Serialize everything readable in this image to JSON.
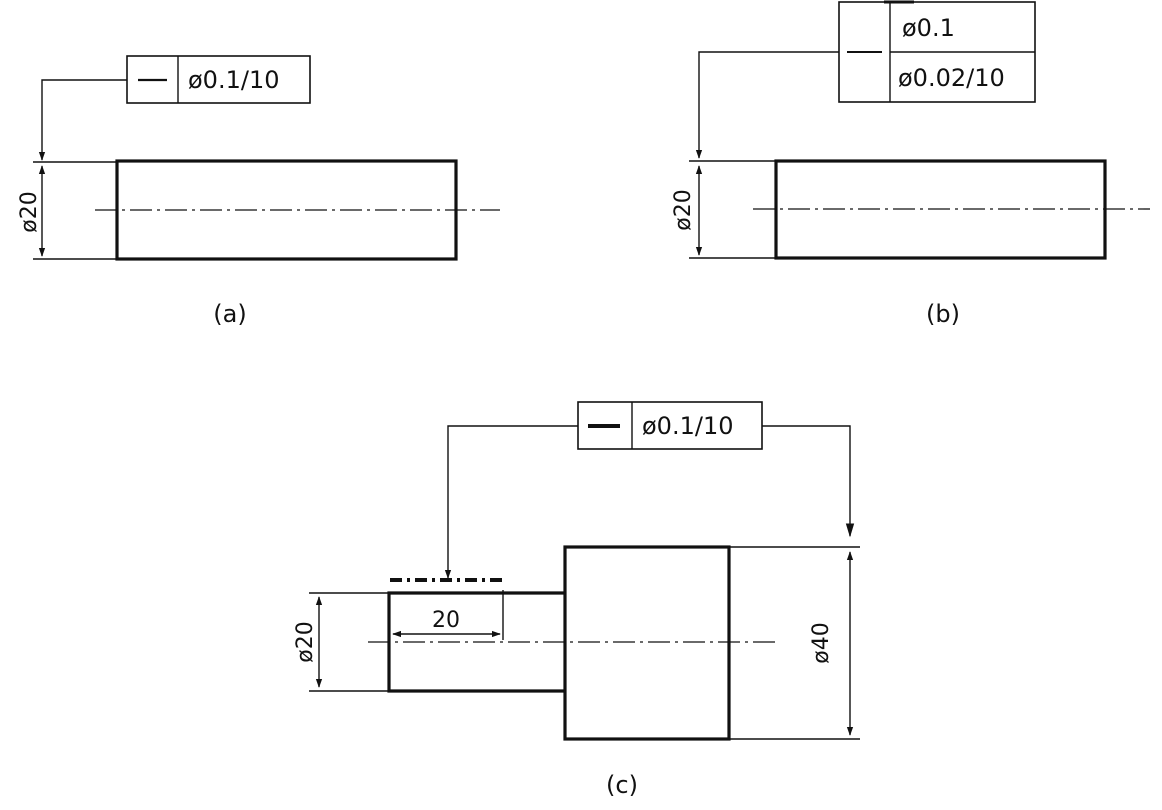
{
  "figures": {
    "a": {
      "caption": "(a)",
      "tolerance_symbol": "—",
      "tolerance_value": "ø0.1/10",
      "dimension": "ø20"
    },
    "b": {
      "caption": "(b)",
      "tolerance_value_top": "ø0.1",
      "tolerance_value_bottom": "ø0.02/10",
      "dimension": "ø20"
    },
    "c": {
      "caption": "(c)",
      "tolerance_symbol": "—",
      "tolerance_value": "ø0.1/10",
      "dimension_small": "ø20",
      "dimension_large": "ø40",
      "length_dimension": "20"
    }
  }
}
